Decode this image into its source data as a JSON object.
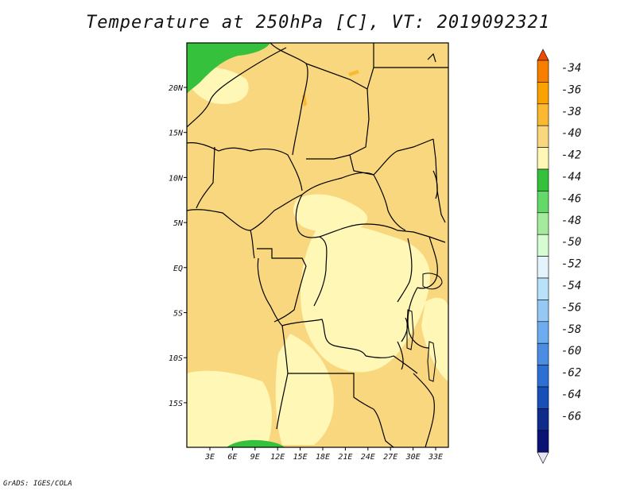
{
  "title": "Temperature at 250hPa [C], VT: 2019092321",
  "footer": "GrADS: IGES/COLA",
  "map": {
    "lon_labels": [
      "3E",
      "6E",
      "9E",
      "12E",
      "15E",
      "18E",
      "21E",
      "24E",
      "27E",
      "30E",
      "33E"
    ],
    "lat_labels": [
      "20N",
      "15N",
      "10N",
      "5N",
      "EQ",
      "5S",
      "10S",
      "15S"
    ],
    "background_color": "#f9d77e"
  },
  "colorbar": {
    "labels": [
      "-34",
      "-36",
      "-38",
      "-40",
      "-42",
      "-44",
      "-46",
      "-48",
      "-50",
      "-52",
      "-54",
      "-56",
      "-58",
      "-60",
      "-62",
      "-64",
      "-66"
    ],
    "colors": [
      "#f04b00",
      "#f87e00",
      "#fba200",
      "#fbb931",
      "#f9d77e",
      "#fef7b6",
      "#35c13c",
      "#63d96a",
      "#a5eb9e",
      "#d6fdd1",
      "#e3f4fd",
      "#b7e2fa",
      "#95c9f4",
      "#6eacf0",
      "#4a8de2",
      "#2e6fd3",
      "#1850b8",
      "#0e2c8c",
      "#0b1275",
      "#e5e5f5"
    ]
  }
}
